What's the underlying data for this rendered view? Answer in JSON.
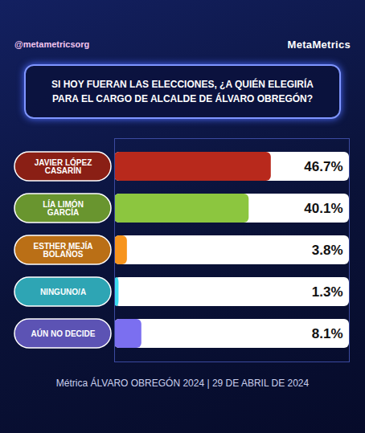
{
  "chart_data": {
    "type": "bar",
    "orientation": "horizontal",
    "title": "SI HOY FUERAN LAS ELECCIONES, ¿A QUIÉN ELEGIRÍA PARA EL CARGO DE ALCALDE DE ÁLVARO OBREGÓN?",
    "annotations": [
      "@metametricsorg",
      "MetaMetrics",
      "Métrica ÁLVARO OBREGÓN 2024 | 29 DE ABRIL DE 2024"
    ],
    "categories": [
      "JAVIER LÓPEZ CASARÍN",
      "LÍA LIMÓN GARCÍA",
      "ESTHER MEJÍA BOLAÑOS",
      "NINGUNO/A",
      "AÚN NO DECIDE"
    ],
    "values": [
      46.7,
      40.1,
      3.8,
      1.3,
      8.1
    ],
    "value_labels": [
      "46.7%",
      "40.1%",
      "3.8%",
      "1.3%",
      "8.1%"
    ],
    "colors": [
      "#b8291c",
      "#8cc63f",
      "#f7941d",
      "#3ddcf0",
      "#7b6ff0"
    ],
    "xlim": [
      0,
      70
    ],
    "xticks": [],
    "tick_labels": "y",
    "data_labels": true,
    "grid": false
  }
}
